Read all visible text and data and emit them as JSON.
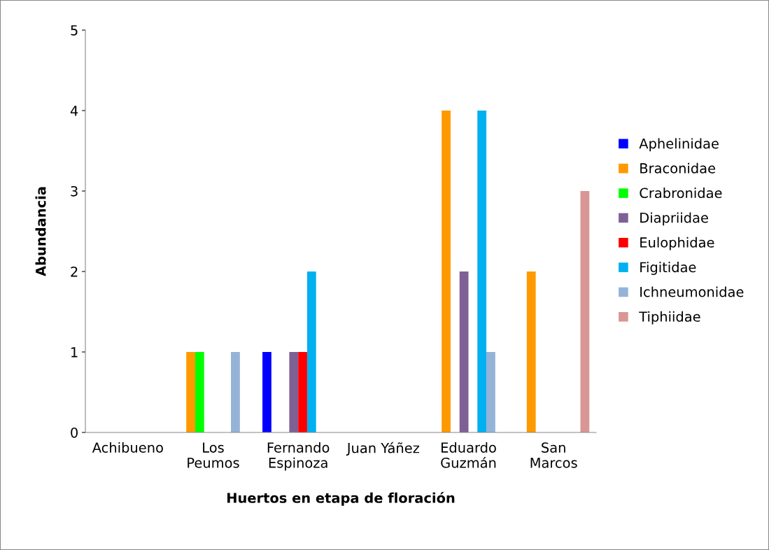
{
  "chart_data": {
    "type": "bar",
    "xlabel": "Huertos en etapa de floración",
    "ylabel": "Abundancia",
    "categories": [
      "Achibueno",
      "Los\nPeumos",
      "Fernando\nEspinoza",
      "Juan Yáñez",
      "Eduardo\nGuzmán",
      "San\nMarcos"
    ],
    "series": [
      {
        "name": "Aphelinidae",
        "color": "#0000ff",
        "values": [
          0,
          0,
          1,
          0,
          0,
          0
        ]
      },
      {
        "name": "Braconidae",
        "color": "#ff9900",
        "values": [
          0,
          1,
          0,
          0,
          4,
          2
        ]
      },
      {
        "name": "Crabronidae",
        "color": "#00ff00",
        "values": [
          0,
          1,
          0,
          0,
          0,
          0
        ]
      },
      {
        "name": "Diapriidae",
        "color": "#7f6095",
        "values": [
          0,
          0,
          1,
          0,
          2,
          0
        ]
      },
      {
        "name": "Eulophidae",
        "color": "#ff0000",
        "values": [
          0,
          0,
          1,
          0,
          0,
          0
        ]
      },
      {
        "name": "Figitidae",
        "color": "#00b0f0",
        "values": [
          0,
          0,
          2,
          0,
          4,
          0
        ]
      },
      {
        "name": "Ichneumonidae",
        "color": "#95b3d7",
        "values": [
          0,
          1,
          0,
          0,
          1,
          0
        ]
      },
      {
        "name": "Tiphiidae",
        "color": "#d99694",
        "values": [
          0,
          0,
          0,
          0,
          0,
          3
        ]
      }
    ],
    "ylim": [
      0,
      5
    ],
    "yticks": [
      0,
      1,
      2,
      3,
      4,
      5
    ],
    "grid": false,
    "legend": "right"
  }
}
